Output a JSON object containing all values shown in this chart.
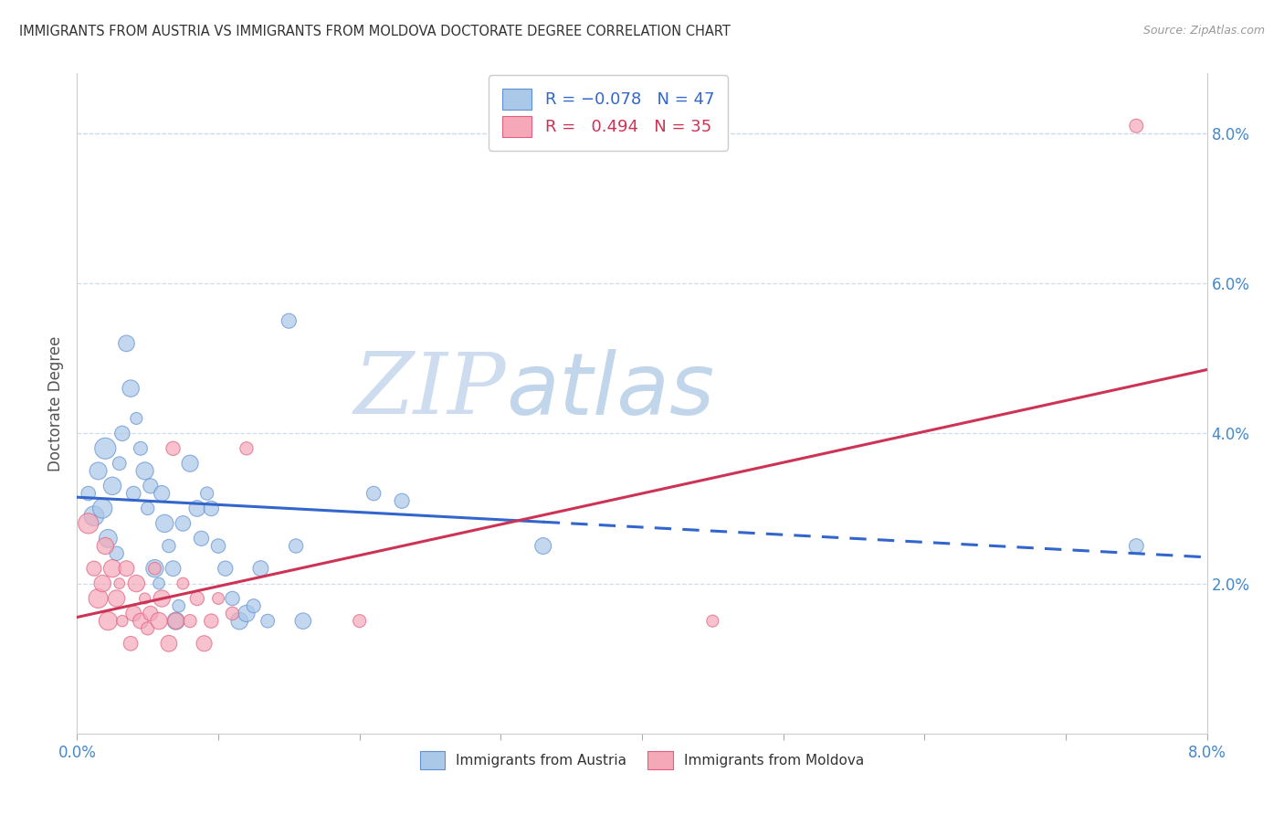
{
  "title": "IMMIGRANTS FROM AUSTRIA VS IMMIGRANTS FROM MOLDOVA DOCTORATE DEGREE CORRELATION CHART",
  "source": "Source: ZipAtlas.com",
  "ylabel": "Doctorate Degree",
  "xlim": [
    0.0,
    8.4
  ],
  "ylim": [
    -0.3,
    9.2
  ],
  "plot_xlim": [
    0.0,
    8.0
  ],
  "plot_ylim": [
    0.0,
    8.8
  ],
  "xtick_positions": [
    0.0,
    1.0,
    2.0,
    3.0,
    4.0,
    5.0,
    6.0,
    7.0,
    8.0
  ],
  "xtick_labels_show": {
    "0.0": "0.0%",
    "8.0": "8.0%"
  },
  "yticks_right": [
    2.0,
    4.0,
    6.0,
    8.0
  ],
  "austria_color": "#aac8e8",
  "moldova_color": "#f4a8b8",
  "austria_edge_color": "#6090d0",
  "moldova_edge_color": "#e06080",
  "austria_line_color": "#3366cc",
  "moldova_line_color": "#cc3355",
  "austria_scatter": [
    [
      0.08,
      3.2
    ],
    [
      0.12,
      2.9
    ],
    [
      0.15,
      3.5
    ],
    [
      0.18,
      3.0
    ],
    [
      0.2,
      3.8
    ],
    [
      0.22,
      2.6
    ],
    [
      0.25,
      3.3
    ],
    [
      0.28,
      2.4
    ],
    [
      0.3,
      3.6
    ],
    [
      0.32,
      4.0
    ],
    [
      0.35,
      5.2
    ],
    [
      0.38,
      4.6
    ],
    [
      0.4,
      3.2
    ],
    [
      0.42,
      4.2
    ],
    [
      0.45,
      3.8
    ],
    [
      0.48,
      3.5
    ],
    [
      0.5,
      3.0
    ],
    [
      0.52,
      3.3
    ],
    [
      0.55,
      2.2
    ],
    [
      0.58,
      2.0
    ],
    [
      0.6,
      3.2
    ],
    [
      0.62,
      2.8
    ],
    [
      0.65,
      2.5
    ],
    [
      0.68,
      2.2
    ],
    [
      0.7,
      1.5
    ],
    [
      0.72,
      1.7
    ],
    [
      0.75,
      2.8
    ],
    [
      0.8,
      3.6
    ],
    [
      0.85,
      3.0
    ],
    [
      0.88,
      2.6
    ],
    [
      0.92,
      3.2
    ],
    [
      0.95,
      3.0
    ],
    [
      1.0,
      2.5
    ],
    [
      1.05,
      2.2
    ],
    [
      1.1,
      1.8
    ],
    [
      1.15,
      1.5
    ],
    [
      1.2,
      1.6
    ],
    [
      1.25,
      1.7
    ],
    [
      1.3,
      2.2
    ],
    [
      1.35,
      1.5
    ],
    [
      1.5,
      5.5
    ],
    [
      1.55,
      2.5
    ],
    [
      1.6,
      1.5
    ],
    [
      2.1,
      3.2
    ],
    [
      2.3,
      3.1
    ],
    [
      3.3,
      2.5
    ],
    [
      7.5,
      2.5
    ]
  ],
  "moldova_scatter": [
    [
      0.08,
      2.8
    ],
    [
      0.12,
      2.2
    ],
    [
      0.15,
      1.8
    ],
    [
      0.18,
      2.0
    ],
    [
      0.2,
      2.5
    ],
    [
      0.22,
      1.5
    ],
    [
      0.25,
      2.2
    ],
    [
      0.28,
      1.8
    ],
    [
      0.3,
      2.0
    ],
    [
      0.32,
      1.5
    ],
    [
      0.35,
      2.2
    ],
    [
      0.38,
      1.2
    ],
    [
      0.4,
      1.6
    ],
    [
      0.42,
      2.0
    ],
    [
      0.45,
      1.5
    ],
    [
      0.48,
      1.8
    ],
    [
      0.5,
      1.4
    ],
    [
      0.52,
      1.6
    ],
    [
      0.55,
      2.2
    ],
    [
      0.58,
      1.5
    ],
    [
      0.6,
      1.8
    ],
    [
      0.65,
      1.2
    ],
    [
      0.68,
      3.8
    ],
    [
      0.7,
      1.5
    ],
    [
      0.75,
      2.0
    ],
    [
      0.8,
      1.5
    ],
    [
      0.85,
      1.8
    ],
    [
      0.9,
      1.2
    ],
    [
      0.95,
      1.5
    ],
    [
      1.0,
      1.8
    ],
    [
      1.1,
      1.6
    ],
    [
      1.2,
      3.8
    ],
    [
      2.0,
      1.5
    ],
    [
      4.5,
      1.5
    ],
    [
      7.5,
      8.1
    ]
  ],
  "austria_line": {
    "x0": 0.0,
    "y0": 3.15,
    "x1": 8.0,
    "y1": 2.35
  },
  "moldova_line": {
    "x0": 0.0,
    "y0": 1.55,
    "x1": 8.0,
    "y1": 4.85
  },
  "austria_solid_end": 3.3,
  "moldova_solid_end": 8.0,
  "background_color": "#ffffff",
  "grid_color": "#ccddee",
  "watermark_text": "ZIP",
  "watermark_text2": "atlas",
  "watermark_color1": "#c5d8ed",
  "watermark_color2": "#b8cfe8"
}
